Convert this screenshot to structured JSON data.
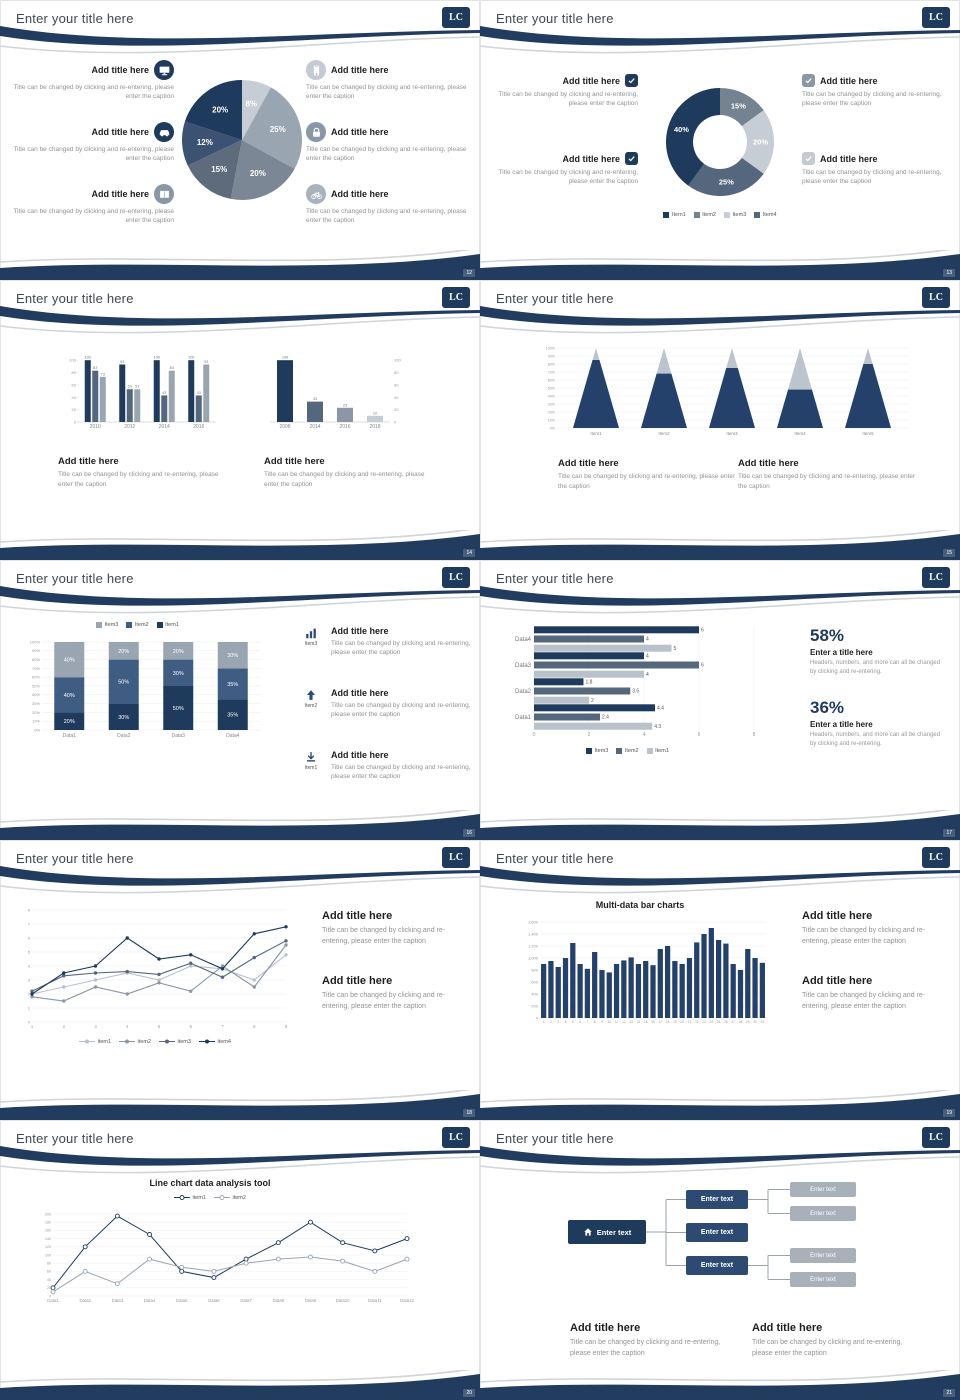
{
  "colors": {
    "accent_navy": "#1e3a5c",
    "steel": "#55677c",
    "gray": "#8a97a6",
    "silver": "#9aa5b2",
    "light": "#c7cdd4"
  },
  "logo": {
    "text": "LC"
  },
  "common": {
    "add_title": "Add title here",
    "caption": "Title can be changed by clicking and re-entering, please enter the caption"
  },
  "slides": [
    {
      "page": "12",
      "title": "Enter your title here",
      "left": [
        {
          "icon": "monitor-icon",
          "bg": "#1e3a5c"
        },
        {
          "icon": "car-icon",
          "bg": "#1e3a5c"
        },
        {
          "icon": "book-icon",
          "bg": "#8a97a6"
        }
      ],
      "right": [
        {
          "icon": "phone-icon",
          "bg": "#c3cad2"
        },
        {
          "icon": "lock-icon",
          "bg": "#8a97a6"
        },
        {
          "icon": "bike-icon",
          "bg": "#aab3bd"
        }
      ],
      "chart_data": {
        "type": "pie",
        "labels": [
          "8%",
          "25%",
          "20%",
          "15%",
          "12%",
          "20%"
        ],
        "values": [
          8,
          25,
          20,
          15,
          12,
          20
        ],
        "colors": [
          "#c7cdd4",
          "#9aa5b2",
          "#7b8795",
          "#5d6b7c",
          "#3c5272",
          "#1e3a5c"
        ]
      }
    },
    {
      "page": "13",
      "title": "Enter your title here",
      "left": [
        {
          "icon": "check-icon",
          "bg": "#1e3a5c"
        },
        {
          "icon": "check-icon",
          "bg": "#1e3a5c"
        }
      ],
      "right": [
        {
          "icon": "check-icon",
          "bg": "#8a97a6"
        },
        {
          "icon": "check-icon",
          "bg": "#c3cad2"
        }
      ],
      "legend": [
        {
          "label": "Item1",
          "color": "#1e3a5c"
        },
        {
          "label": "Item2",
          "color": "#75828f"
        },
        {
          "label": "Item3",
          "color": "#c7cdd4"
        },
        {
          "label": "Item4",
          "color": "#55677c"
        }
      ],
      "chart_data": {
        "type": "donut",
        "labels": [
          "15%",
          "20%",
          "25%",
          "40%"
        ],
        "values": [
          15,
          20,
          25,
          40
        ],
        "colors": [
          "#75828f",
          "#c7cdd4",
          "#55677c",
          "#1e3a5c"
        ]
      }
    },
    {
      "page": "14",
      "title": "Enter your title here",
      "chart_data": [
        {
          "type": "groupbar",
          "categories": [
            "2010",
            "2012",
            "2014",
            "2016"
          ],
          "series": [
            {
              "name": "series1",
              "color": "#1e3a5c",
              "values": [
                100,
                93,
                100,
                100
              ]
            },
            {
              "name": "series2",
              "color": "#55677c",
              "values": [
                83,
                53,
                43,
                43
              ]
            },
            {
              "name": "series3",
              "color": "#9aa5b2",
              "values": [
                73,
                53,
                83,
                93
              ]
            }
          ],
          "ylim": [
            0,
            110
          ],
          "yticks": [
            0,
            20,
            40,
            60,
            80,
            100
          ]
        },
        {
          "type": "bar",
          "categories": [
            "2008",
            "2014",
            "2016",
            "2018"
          ],
          "values": [
            100,
            33,
            23,
            10
          ],
          "colors": [
            "#1e3a5c",
            "#55677c",
            "#8a97a6",
            "#c7cdd4"
          ],
          "ylim": [
            0,
            110
          ],
          "yticks": [
            0,
            20,
            40,
            60,
            80,
            100
          ]
        }
      ]
    },
    {
      "page": "15",
      "title": "Enter your title here",
      "chart_data": {
        "type": "cone",
        "categories": [
          "Item1",
          "Item2",
          "Item3",
          "Item4",
          "Item5"
        ],
        "values": [
          85,
          68,
          75,
          48,
          80
        ],
        "ylim": [
          0,
          100
        ]
      }
    },
    {
      "page": "16",
      "title": "Enter your title here",
      "legend": [
        {
          "label": "Item3",
          "color": "#9aa5b2"
        },
        {
          "label": "Item2",
          "color": "#3f5c82"
        },
        {
          "label": "Item1",
          "color": "#1e3a5c"
        }
      ],
      "items": [
        {
          "icon": "bar-chart-icon",
          "label": "Item3"
        },
        {
          "icon": "arrow-up-icon",
          "label": "Item2"
        },
        {
          "icon": "download-icon",
          "label": "Item1"
        }
      ],
      "chart_data": {
        "type": "stacked",
        "categories": [
          "Data1",
          "Data2",
          "Data3",
          "Data4"
        ],
        "series": [
          {
            "name": "Item1",
            "color": "#1e3a5c",
            "values": [
              20,
              30,
              50,
              35
            ]
          },
          {
            "name": "Item2",
            "color": "#3f5c82",
            "values": [
              40,
              50,
              30,
              35
            ]
          },
          {
            "name": "Item3",
            "color": "#9aa5b2",
            "values": [
              40,
              20,
              20,
              30
            ]
          }
        ],
        "ylim": [
          0,
          100
        ]
      }
    },
    {
      "page": "17",
      "title": "Enter your title here",
      "stats": [
        {
          "pct": "58%",
          "t": "Enter a title here",
          "c": "Headers, numbers, and more can all be changed by clicking and re-entering."
        },
        {
          "pct": "36%",
          "t": "Enter a title here",
          "c": "Headers, numbers, and more can all be changed by clicking and re-entering."
        }
      ],
      "legend": [
        {
          "label": "Item3",
          "color": "#1e3a5c"
        },
        {
          "label": "Item2",
          "color": "#55677c"
        },
        {
          "label": "Item1",
          "color": "#b9c1cb"
        }
      ],
      "chart_data": {
        "type": "hbar",
        "groups": [
          "Data4",
          "Data3",
          "Data2",
          "Data1"
        ],
        "series": [
          {
            "name": "Item3",
            "color": "#1e3a5c",
            "values": [
              6,
              4,
              1.8,
              4.4
            ]
          },
          {
            "name": "Item2",
            "color": "#55677c",
            "values": [
              4,
              6,
              3.5,
              2.4
            ]
          },
          {
            "name": "Item1",
            "color": "#b9c1cb",
            "values": [
              5,
              4,
              2,
              4.3
            ]
          }
        ],
        "xlim": [
          0,
          8
        ],
        "xticks": [
          0,
          2,
          4,
          6,
          8
        ]
      }
    },
    {
      "page": "18",
      "title": "Enter your title here",
      "legend": [
        {
          "label": "item1",
          "color": "#b9c1cb",
          "marker": "circle"
        },
        {
          "label": "item2",
          "color": "#8a97a6",
          "marker": "circle"
        },
        {
          "label": "item3",
          "color": "#55677c",
          "marker": "circle"
        },
        {
          "label": "item4",
          "color": "#1e3a5c",
          "marker": "circle"
        }
      ],
      "chart_data": {
        "type": "line",
        "x": [
          1,
          2,
          3,
          4,
          5,
          6,
          7,
          8,
          9
        ],
        "ylim": [
          0,
          8
        ],
        "series": [
          {
            "name": "item1",
            "color": "#b9c1cb",
            "values": [
              2,
              2.5,
              3,
              3.5,
              3,
              4,
              3.8,
              3,
              4.8
            ]
          },
          {
            "name": "item2",
            "color": "#8a97a6",
            "values": [
              1.8,
              1.5,
              2.5,
              2,
              2.8,
              2.2,
              4,
              2.5,
              5.5
            ]
          },
          {
            "name": "item3",
            "color": "#55677c",
            "values": [
              2.2,
              3.3,
              3.5,
              3.6,
              3.4,
              4.2,
              3.2,
              4.6,
              5.8
            ]
          },
          {
            "name": "item4",
            "color": "#1e3a5c",
            "values": [
              2,
              3.5,
              4,
              6,
              4.5,
              4.8,
              3.8,
              6.3,
              6.8
            ]
          }
        ]
      }
    },
    {
      "page": "19",
      "title": "Enter your title here",
      "chart_title": "Multi-data bar charts",
      "chart_data": {
        "type": "dense",
        "ylim": [
          0,
          1600
        ],
        "ystep": 200,
        "values": [
          900,
          950,
          850,
          1000,
          1250,
          900,
          820,
          1100,
          800,
          760,
          900,
          960,
          1010,
          900,
          950,
          880,
          1150,
          1200,
          950,
          900,
          1000,
          1260,
          1400,
          1500,
          1300,
          1240,
          900,
          800,
          1150,
          1000,
          920
        ]
      }
    },
    {
      "page": "20",
      "title": "Enter your title here",
      "chart_title": "Line chart data analysis tool",
      "legend": [
        {
          "label": "item1",
          "color": "#1e3a5c",
          "marker": "circle-hollow"
        },
        {
          "label": "item2",
          "color": "#9aa5b2",
          "marker": "circle-hollow"
        }
      ],
      "chart_data": {
        "type": "line2",
        "ylim": [
          0,
          200
        ],
        "ystep": 20,
        "x": [
          "Data1",
          "Data2",
          "Data3",
          "Data4",
          "Data5",
          "Data6",
          "Data7",
          "Data8",
          "Data9",
          "Data10",
          "Data11",
          "Data12"
        ],
        "series": [
          {
            "name": "item1",
            "color": "#1e3a5c",
            "values": [
              20,
              120,
              195,
              150,
              60,
              45,
              90,
              130,
              180,
              130,
              110,
              140
            ]
          },
          {
            "name": "item2",
            "color": "#9aa5b2",
            "values": [
              10,
              60,
              30,
              90,
              70,
              60,
              80,
              90,
              95,
              85,
              60,
              90
            ]
          }
        ]
      }
    },
    {
      "page": "21",
      "title": "Enter your title here",
      "diagram": {
        "root": "Enter text",
        "mid": [
          "Enter text",
          "Enter text",
          "Enter text"
        ],
        "leaves": [
          "Enter text",
          "Enter text",
          "Enter text",
          "Enter text"
        ]
      }
    }
  ]
}
